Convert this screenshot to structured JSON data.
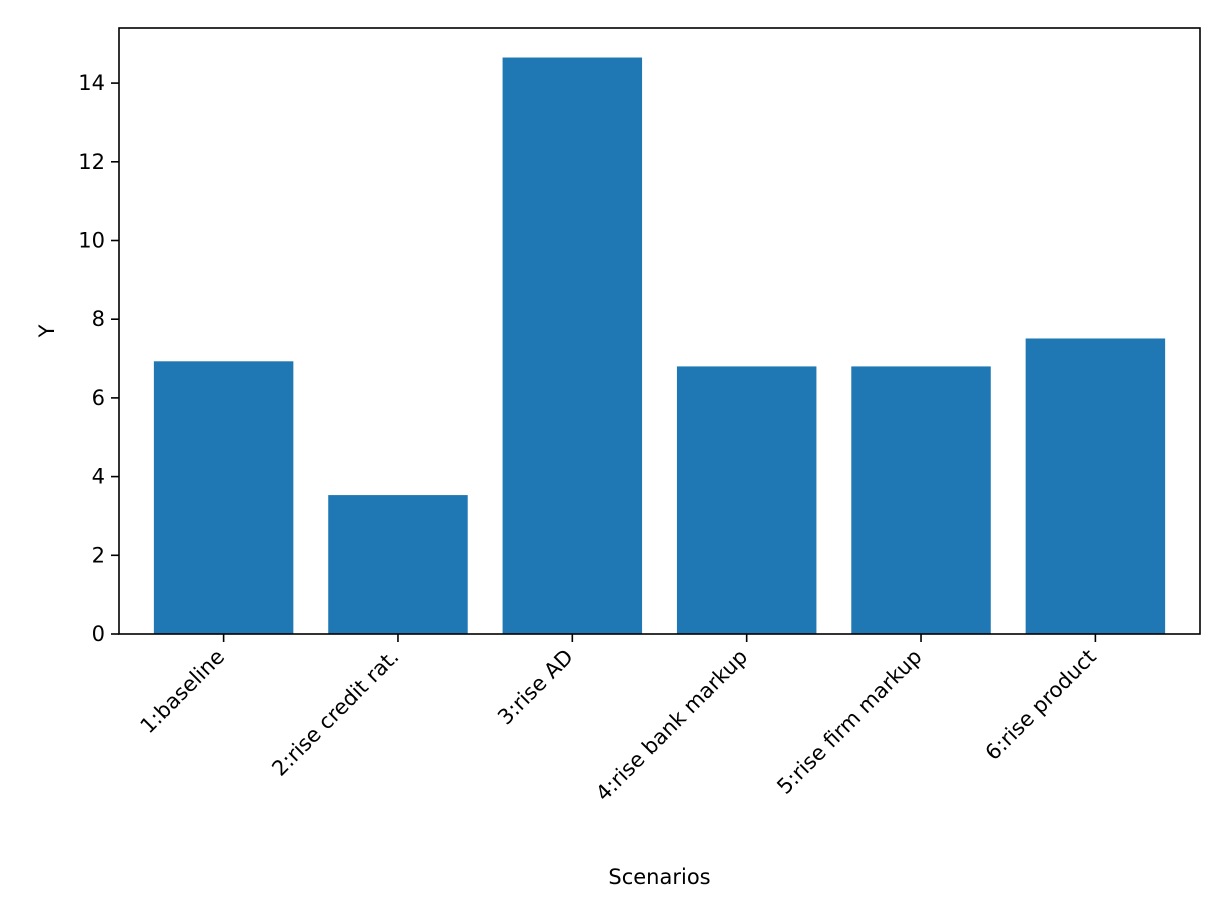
{
  "chart_data": {
    "type": "bar",
    "title": "",
    "xlabel": "Scenarios",
    "ylabel": "Y",
    "categories": [
      "1:baseline",
      "2:rise credit rat.",
      "3:rise AD",
      "4:rise bank markup",
      "5:rise firm markup",
      "6:rise product"
    ],
    "values": [
      6.93,
      3.53,
      14.65,
      6.8,
      6.8,
      7.51
    ],
    "ylim": [
      0,
      15.4
    ],
    "yticks": [
      0,
      2,
      4,
      6,
      8,
      10,
      12,
      14
    ],
    "grid": false,
    "bar_color": "#1f77b4"
  }
}
